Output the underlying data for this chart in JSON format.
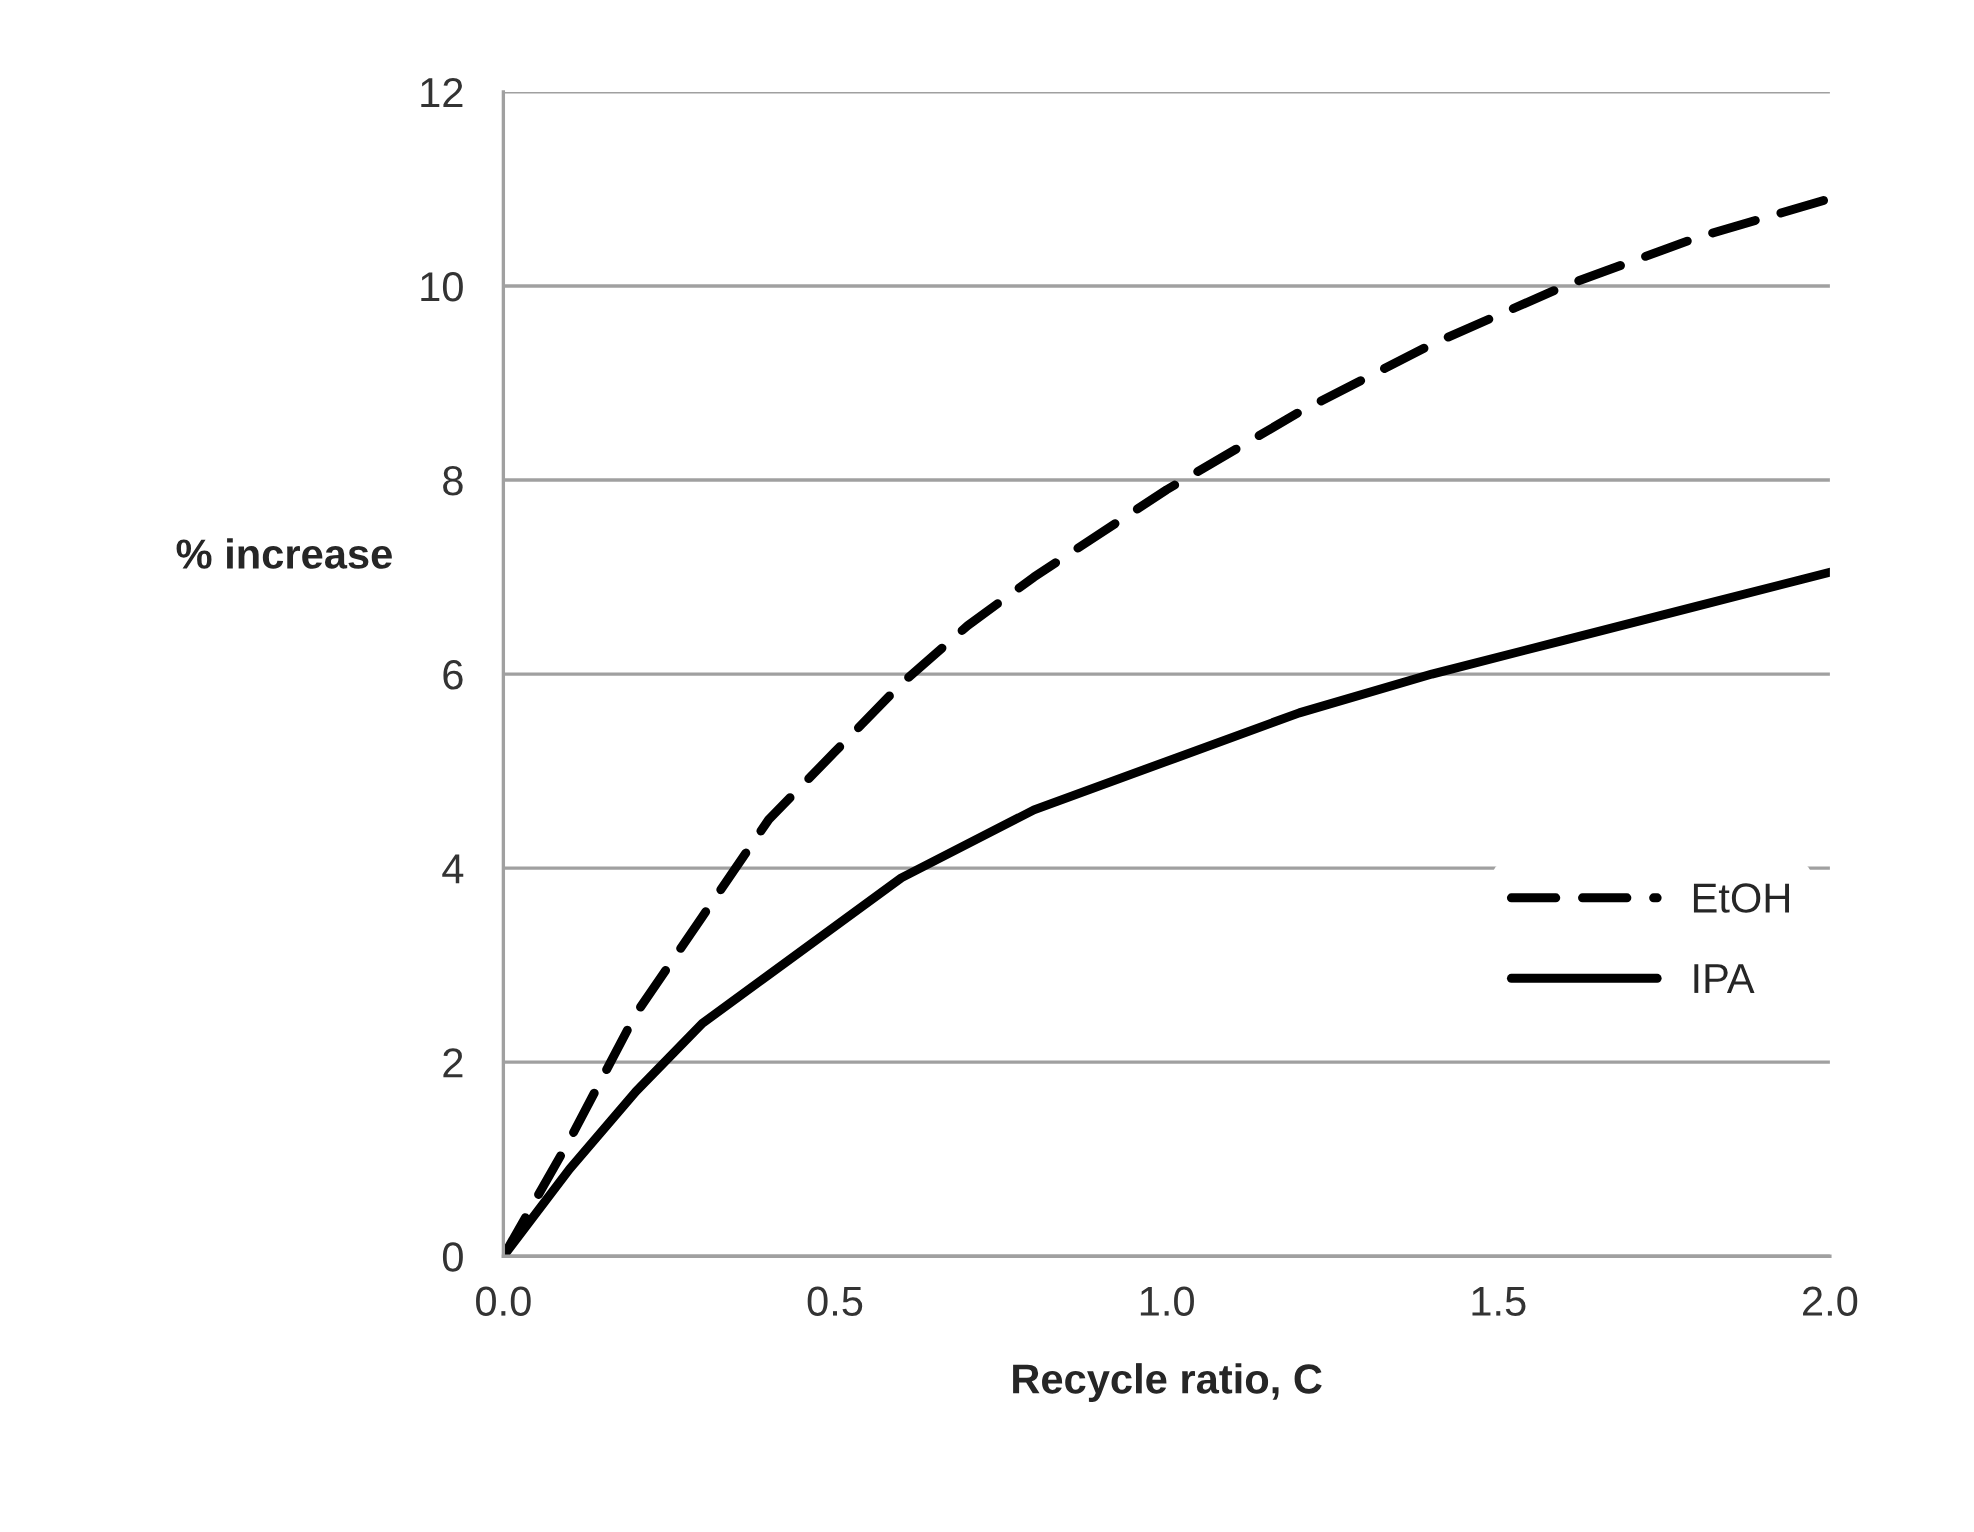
{
  "chart_data": {
    "type": "line",
    "xlabel": "Recycle ratio, C",
    "ylabel": "% increase",
    "xlim": [
      0,
      2
    ],
    "xticks": [
      {
        "value": 0,
        "label": "0.0"
      },
      {
        "value": 0.5,
        "label": "0.5"
      },
      {
        "value": 1,
        "label": "1.0"
      },
      {
        "value": 1.5,
        "label": "1.5"
      },
      {
        "value": 2,
        "label": "2.0"
      }
    ],
    "ylim": [
      0,
      12
    ],
    "yticks": [
      0,
      2,
      4,
      6,
      8,
      10,
      12
    ],
    "grid": "y",
    "legend": "right",
    "marker": "none",
    "series": [
      {
        "name": "EtOH",
        "color": "#000000",
        "line_style": "dashed",
        "x": [
          0,
          0.1,
          0.2,
          0.3,
          0.4,
          0.5,
          0.6,
          0.7,
          0.8,
          1.0,
          1.2,
          1.4,
          1.6,
          1.8,
          2.0
        ],
        "values": [
          0,
          1.2,
          2.5,
          3.5,
          4.5,
          5.2,
          5.9,
          6.5,
          7.0,
          7.9,
          8.7,
          9.4,
          10.0,
          10.5,
          10.9
        ]
      },
      {
        "name": "IPA",
        "color": "#000000",
        "line_style": "solid",
        "x": [
          0,
          0.1,
          0.2,
          0.3,
          0.4,
          0.5,
          0.6,
          0.8,
          1.0,
          1.2,
          1.4,
          1.6,
          1.8,
          2.0
        ],
        "values": [
          0,
          0.9,
          1.7,
          2.4,
          2.9,
          3.4,
          3.9,
          4.6,
          5.1,
          5.6,
          6.0,
          6.35,
          6.7,
          7.05
        ]
      }
    ]
  }
}
